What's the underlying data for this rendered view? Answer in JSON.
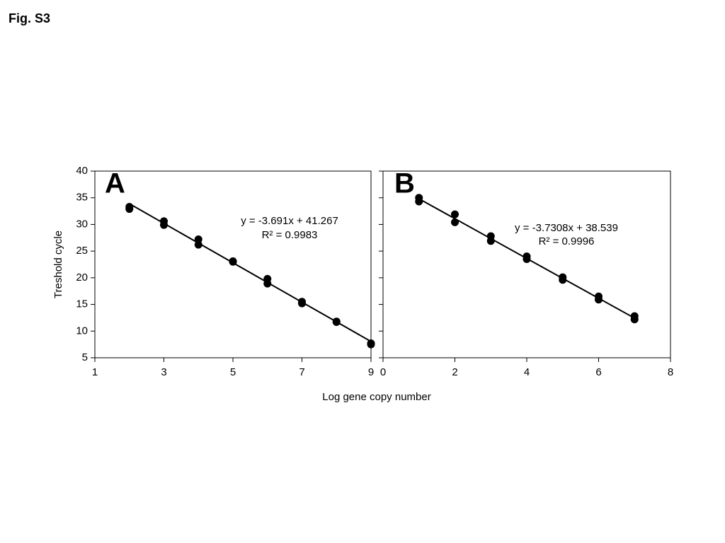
{
  "figure": {
    "label": "Fig. S3",
    "xlabel": "Log gene copy number"
  },
  "chart_data": [
    {
      "type": "scatter",
      "panel_label": "A",
      "ylabel": "Treshold cycle",
      "color": "#000000",
      "x": [
        2,
        2,
        3,
        3,
        4,
        4,
        5,
        5,
        6,
        6,
        7,
        7,
        8,
        8,
        9,
        9
      ],
      "values": [
        33.3,
        32.9,
        30.6,
        29.9,
        27.2,
        26.2,
        23.1,
        23.0,
        19.8,
        18.9,
        15.5,
        15.2,
        11.8,
        11.7,
        7.7,
        7.5
      ],
      "xlim": [
        1,
        9
      ],
      "xticks": [
        1,
        3,
        5,
        7,
        9
      ],
      "ylim": [
        5,
        40
      ],
      "yticks": [
        5,
        10,
        15,
        20,
        25,
        30,
        35,
        40
      ],
      "show_ytick_labels": true,
      "fit": {
        "equation": "y = -3.691x + 41.267",
        "r2_label": "R² = 0.9983",
        "slope": -3.691,
        "intercept": 41.267
      }
    },
    {
      "type": "scatter",
      "panel_label": "B",
      "color": "#000000",
      "x": [
        1,
        1,
        2,
        2,
        3,
        3,
        4,
        4,
        5,
        5,
        6,
        6,
        7,
        7
      ],
      "values": [
        35.0,
        34.3,
        31.9,
        30.4,
        27.8,
        26.9,
        24.0,
        23.5,
        20.1,
        19.6,
        16.5,
        15.9,
        12.8,
        12.2
      ],
      "xlim": [
        0,
        8
      ],
      "xticks": [
        0,
        2,
        4,
        6,
        8
      ],
      "ylim": [
        5,
        40
      ],
      "yticks": [
        5,
        10,
        15,
        20,
        25,
        30,
        35,
        40
      ],
      "show_ytick_labels": false,
      "fit": {
        "equation": "y = -3.7308x + 38.539",
        "r2_label": "R² = 0.9996",
        "slope": -3.7308,
        "intercept": 38.539
      }
    }
  ]
}
